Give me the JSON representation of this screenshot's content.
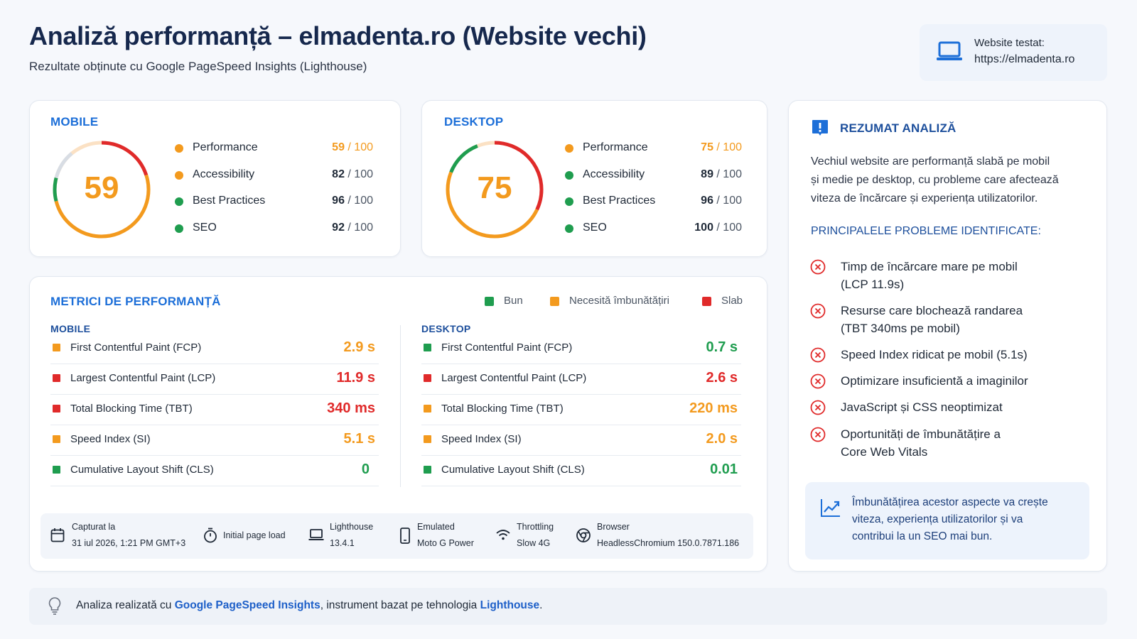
{
  "header": {
    "title": "Analiză performanță – elmadenta.ro (Website vechi)",
    "subtitle": "Rezultate obținute cu Google PageSpeed Insights (Lighthouse)",
    "tested_label": "Website testat:",
    "tested_url": "https://elmadenta.ro"
  },
  "colors": {
    "good": "#1f9d4f",
    "needs_improvement": "#f39a1e",
    "poor": "#e02a2a",
    "accent": "#1d6fd8",
    "title": "#16284d"
  },
  "mobile_card": {
    "heading": "MOBILE",
    "gauge_score": "59",
    "gauge_fraction": 0.59,
    "categories": [
      {
        "label": "Performance",
        "score": "59",
        "denom": " / 100",
        "status": "needs_improvement"
      },
      {
        "label": "Accessibility",
        "score": "82",
        "denom": " / 100",
        "status": "needs_improvement"
      },
      {
        "label": "Best Practices",
        "score": "96",
        "denom": " / 100",
        "status": "good"
      },
      {
        "label": "SEO",
        "score": "92",
        "denom": " / 100",
        "status": "good"
      }
    ]
  },
  "desktop_card": {
    "heading": "DESKTOP",
    "gauge_score": "75",
    "gauge_fraction": 0.75,
    "categories": [
      {
        "label": "Performance",
        "score": "75",
        "denom": " / 100",
        "status": "needs_improvement"
      },
      {
        "label": "Accessibility",
        "score": "89",
        "denom": " / 100",
        "status": "good"
      },
      {
        "label": "Best Practices",
        "score": "96",
        "denom": " / 100",
        "status": "good"
      },
      {
        "label": "SEO",
        "score": "100",
        "denom": " / 100",
        "status": "good"
      }
    ]
  },
  "metrics": {
    "heading": "METRICI DE PERFORMANȚĂ",
    "legend": [
      {
        "label": "Bun",
        "status": "good"
      },
      {
        "label": "Necesită îmbunătățiri",
        "status": "needs_improvement"
      },
      {
        "label": "Slab",
        "status": "poor"
      }
    ],
    "mobile": {
      "heading": "MOBILE",
      "rows": [
        {
          "label": "First Contentful Paint (FCP)",
          "value": "2.9 s",
          "status": "needs_improvement"
        },
        {
          "label": "Largest Contentful Paint (LCP)",
          "value": "11.9 s",
          "status": "poor"
        },
        {
          "label": "Total Blocking Time (TBT)",
          "value": "340 ms",
          "status": "poor"
        },
        {
          "label": "Speed Index (SI)",
          "value": "5.1 s",
          "status": "needs_improvement"
        },
        {
          "label": "Cumulative Layout Shift (CLS)",
          "value": "0",
          "status": "good"
        }
      ]
    },
    "desktop": {
      "heading": "DESKTOP",
      "rows": [
        {
          "label": "First Contentful Paint (FCP)",
          "value": "0.7 s",
          "status": "good"
        },
        {
          "label": "Largest Contentful Paint (LCP)",
          "value": "2.6 s",
          "status": "poor"
        },
        {
          "label": "Total Blocking Time (TBT)",
          "value": "220 ms",
          "status": "needs_improvement"
        },
        {
          "label": "Speed Index (SI)",
          "value": "2.0 s",
          "status": "needs_improvement"
        },
        {
          "label": "Cumulative Layout Shift (CLS)",
          "value": "0.01",
          "status": "good"
        }
      ]
    },
    "info": {
      "captured_label": "Capturat la",
      "captured_value": "31 iul 2026, 1:21 PM GMT+3",
      "load_label": "Initial page load",
      "lighthouse_label": "Lighthouse",
      "lighthouse_value": "13.4.1",
      "emulated_label": "Emulated",
      "emulated_value": "Moto G Power",
      "throttling_label": "Throttling",
      "throttling_value": "Slow 4G",
      "browser_label": "Browser",
      "browser_value": "HeadlessChromium 150.0.7871.186"
    }
  },
  "summary": {
    "heading": "REZUMAT ANALIZĂ",
    "text_lines": [
      "Vechiul website are performanță slabă pe mobil",
      "și medie pe desktop, cu probleme care afectează",
      "viteza de încărcare și experiența utilizatorilor."
    ],
    "problems_heading": "PRINCIPALELE PROBLEME IDENTIFICATE:",
    "problems": [
      {
        "line1": "Timp de încărcare mare pe mobil",
        "line2": "(LCP 11.9s)"
      },
      {
        "line1": "Resurse care blochează randarea",
        "line2": "(TBT 340ms pe mobil)"
      },
      {
        "line1": "Speed Index ridicat pe mobil (5.1s)",
        "line2": ""
      },
      {
        "line1": "Optimizare insuficientă a imaginilor",
        "line2": ""
      },
      {
        "line1": "JavaScript și CSS neoptimizat",
        "line2": ""
      },
      {
        "line1": "Oportunități de îmbunătățire a",
        "line2": "Core Web Vitals"
      }
    ],
    "tip_lines": [
      "Îmbunătățirea acestor aspecte va crește",
      "viteza, experiența utilizatorilor și va",
      "contribui la un SEO mai bun."
    ]
  },
  "footer": {
    "prefix": "Analiza realizată cu ",
    "link1": "Google PageSpeed Insights",
    "middle": ", instrument bazat pe tehnologia ",
    "link2": "Lighthouse",
    "suffix": "."
  }
}
